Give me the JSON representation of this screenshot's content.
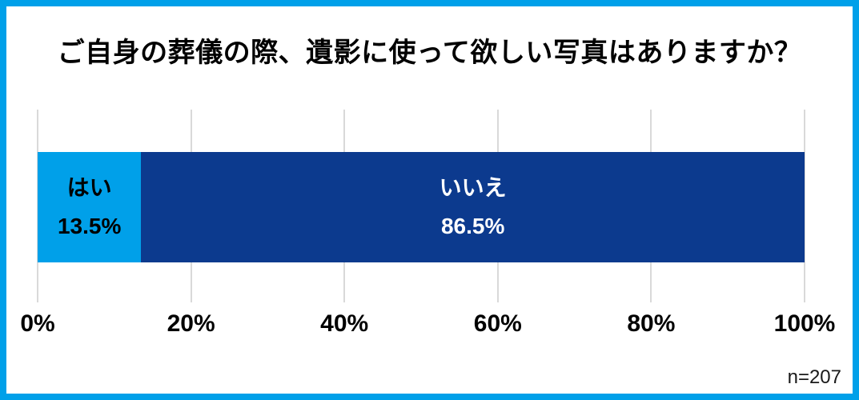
{
  "chart_data": {
    "type": "bar",
    "variant": "horizontal-stacked",
    "title": "ご自身の葬儀の際、遺影に使って欲しい写真はありますか？",
    "categories": [
      "はい",
      "いいえ"
    ],
    "values": [
      13.5,
      86.5
    ],
    "segments": [
      {
        "label": "はい",
        "value": 13.5,
        "value_label": "13.5%",
        "color": "#00a0e9",
        "text_color": "#000000"
      },
      {
        "label": "いいえ",
        "value": 86.5,
        "value_label": "86.5%",
        "color": "#0c3a8e",
        "text_color": "#ffffff"
      }
    ],
    "xlabel": "",
    "ylabel": "",
    "x_ticks": [
      "0%",
      "20%",
      "40%",
      "60%",
      "80%",
      "100%"
    ],
    "xlim": [
      0,
      100
    ],
    "grid": true,
    "legend": false,
    "note": "n=207"
  },
  "style": {
    "frame_border_color": "#00a0e9",
    "gridline_color": "#d9d9d9",
    "background": "#ffffff"
  }
}
